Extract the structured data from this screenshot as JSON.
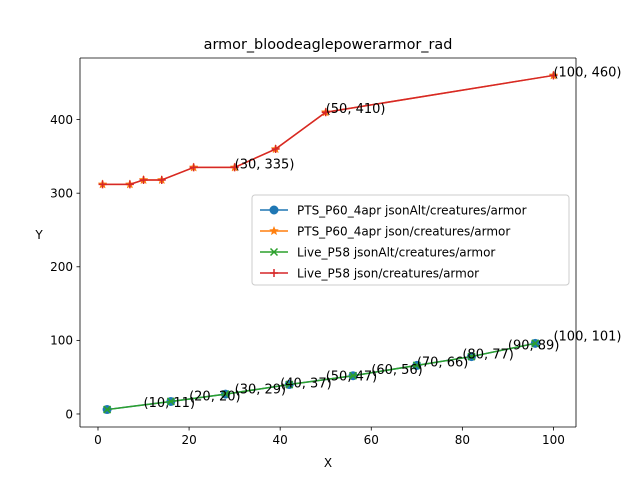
{
  "chart_data": {
    "type": "line",
    "title": "armor_bloodeaglepowerarmor_rad",
    "xlabel": "X",
    "ylabel": "Y",
    "xlim": [
      -3.95,
      104.95
    ],
    "ylim": [
      -17.7,
      483.7
    ],
    "xticks": [
      0,
      20,
      40,
      60,
      80,
      100
    ],
    "yticks": [
      0,
      100,
      200,
      300,
      400
    ],
    "grid": false,
    "legend_position": "center-right",
    "series": [
      {
        "name": "PTS_P60_4apr jsonAlt/creatures/armor",
        "color": "#1f77b4",
        "marker": "circle",
        "x": [
          2,
          16,
          28,
          42,
          56,
          70,
          82,
          96
        ],
        "y": [
          6,
          17,
          27,
          40,
          52,
          66,
          78,
          96
        ]
      },
      {
        "name": "PTS_P60_4apr json/creatures/armor",
        "color": "#ff7f0e",
        "marker": "star",
        "x": [
          1,
          7,
          10,
          14,
          21,
          30,
          39,
          50,
          100
        ],
        "y": [
          312,
          312,
          318,
          318,
          335,
          335,
          360,
          410,
          460
        ]
      },
      {
        "name": "Live_P58 jsonAlt/creatures/armor",
        "color": "#2ca02c",
        "marker": "x",
        "x": [
          2,
          16,
          28,
          42,
          56,
          70,
          82,
          96
        ],
        "y": [
          6,
          17,
          27,
          40,
          52,
          66,
          78,
          96
        ]
      },
      {
        "name": "Live_P58 json/creatures/armor",
        "color": "#d62728",
        "marker": "plus",
        "x": [
          1,
          7,
          10,
          14,
          21,
          30,
          39,
          50,
          100
        ],
        "y": [
          312,
          312,
          318,
          318,
          335,
          335,
          360,
          410,
          460
        ]
      }
    ],
    "annotations": [
      {
        "text": "(100, 460)",
        "x": 100,
        "y": 460
      },
      {
        "text": "(50, 410)",
        "x": 50,
        "y": 410
      },
      {
        "text": "(30, 335)",
        "x": 30,
        "y": 335
      },
      {
        "text": "(10, 11)",
        "x": 10,
        "y": 11
      },
      {
        "text": "(20, 20)",
        "x": 20,
        "y": 20
      },
      {
        "text": "(30, 29)",
        "x": 30,
        "y": 29
      },
      {
        "text": "(40, 37)",
        "x": 40,
        "y": 37
      },
      {
        "text": "(50, 47)",
        "x": 50,
        "y": 47
      },
      {
        "text": "(60, 56)",
        "x": 60,
        "y": 56
      },
      {
        "text": "(70, 66)",
        "x": 70,
        "y": 66
      },
      {
        "text": "(80, 77)",
        "x": 80,
        "y": 77
      },
      {
        "text": "(90, 89)",
        "x": 90,
        "y": 89
      },
      {
        "text": "(100, 101)",
        "x": 100,
        "y": 101
      }
    ]
  }
}
